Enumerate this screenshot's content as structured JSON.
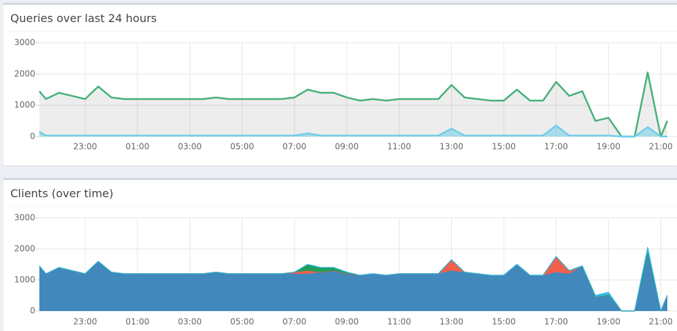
{
  "chart_data": [
    {
      "type": "area",
      "title": "Queries over last 24 hours",
      "stacked": false,
      "grid": true,
      "x": [
        21.25,
        21.5,
        22,
        22.5,
        23,
        23.5,
        24,
        24.5,
        25,
        25.5,
        26,
        26.5,
        27,
        27.5,
        28,
        28.5,
        29,
        29.5,
        30,
        30.5,
        31,
        31.5,
        32,
        32.5,
        33,
        33.5,
        34,
        34.5,
        35,
        35.5,
        36,
        36.5,
        37,
        37.5,
        38,
        38.5,
        39,
        39.5,
        40,
        40.5,
        41,
        41.5,
        42,
        42.5,
        43,
        43.5,
        44,
        44.5,
        45,
        45.25
      ],
      "xlim": [
        21.25,
        45.25
      ],
      "xticks": [
        {
          "value": 23,
          "label": "23:00"
        },
        {
          "value": 25,
          "label": "01:00"
        },
        {
          "value": 27,
          "label": "03:00"
        },
        {
          "value": 29,
          "label": "05:00"
        },
        {
          "value": 31,
          "label": "07:00"
        },
        {
          "value": 33,
          "label": "09:00"
        },
        {
          "value": 35,
          "label": "11:00"
        },
        {
          "value": 37,
          "label": "13:00"
        },
        {
          "value": 39,
          "label": "15:00"
        },
        {
          "value": 41,
          "label": "17:00"
        },
        {
          "value": 43,
          "label": "19:00"
        },
        {
          "value": 45,
          "label": "21:00"
        }
      ],
      "ylim": [
        0,
        3000
      ],
      "yticks": [
        0,
        1000,
        2000,
        3000
      ],
      "series": [
        {
          "color": "#45b07a",
          "fill": "rgba(0,0,0,0.07)",
          "values": [
            1450,
            1200,
            1400,
            1300,
            1200,
            1600,
            1250,
            1200,
            1200,
            1200,
            1200,
            1200,
            1200,
            1200,
            1250,
            1200,
            1200,
            1200,
            1200,
            1200,
            1250,
            1500,
            1400,
            1400,
            1250,
            1150,
            1200,
            1150,
            1200,
            1200,
            1200,
            1200,
            1650,
            1250,
            1200,
            1150,
            1150,
            1500,
            1150,
            1150,
            1750,
            1300,
            1450,
            500,
            600,
            0,
            0,
            2050,
            0,
            500
          ]
        },
        {
          "color": "#6fcde8",
          "fill": "rgba(111,205,232,0.55)",
          "values": [
            150,
            30,
            30,
            30,
            30,
            30,
            30,
            30,
            30,
            30,
            30,
            30,
            30,
            30,
            30,
            30,
            30,
            30,
            30,
            30,
            30,
            100,
            30,
            30,
            30,
            30,
            30,
            30,
            30,
            30,
            30,
            30,
            250,
            30,
            30,
            30,
            30,
            30,
            30,
            30,
            350,
            30,
            30,
            30,
            30,
            0,
            0,
            300,
            0,
            0
          ]
        }
      ]
    },
    {
      "type": "area",
      "title": "Clients (over time)",
      "stacked": true,
      "grid": true,
      "x": [
        21.25,
        21.5,
        22,
        22.5,
        23,
        23.5,
        24,
        24.5,
        25,
        25.5,
        26,
        26.5,
        27,
        27.5,
        28,
        28.5,
        29,
        29.5,
        30,
        30.5,
        31,
        31.5,
        32,
        32.5,
        33,
        33.5,
        34,
        34.5,
        35,
        35.5,
        36,
        36.5,
        37,
        37.5,
        38,
        38.5,
        39,
        39.5,
        40,
        40.5,
        41,
        41.5,
        42,
        42.5,
        43,
        43.5,
        44,
        44.5,
        45,
        45.25
      ],
      "xlim": [
        21.25,
        45.25
      ],
      "xticks": [
        {
          "value": 23,
          "label": "23:00"
        },
        {
          "value": 25,
          "label": "01:00"
        },
        {
          "value": 27,
          "label": "03:00"
        },
        {
          "value": 29,
          "label": "05:00"
        },
        {
          "value": 31,
          "label": "07:00"
        },
        {
          "value": 33,
          "label": "09:00"
        },
        {
          "value": 35,
          "label": "11:00"
        },
        {
          "value": 37,
          "label": "13:00"
        },
        {
          "value": 39,
          "label": "15:00"
        },
        {
          "value": 41,
          "label": "17:00"
        },
        {
          "value": 43,
          "label": "19:00"
        },
        {
          "value": 45,
          "label": "21:00"
        }
      ],
      "ylim": [
        0,
        3000
      ],
      "yticks": [
        0,
        1000,
        2000,
        3000
      ],
      "series": [
        {
          "color": "#4188bd",
          "fill": "#4188bd",
          "values": [
            1450,
            1200,
            1400,
            1300,
            1200,
            1600,
            1250,
            1200,
            1200,
            1200,
            1200,
            1200,
            1200,
            1200,
            1250,
            1200,
            1200,
            1200,
            1200,
            1200,
            1200,
            1200,
            1250,
            1300,
            1200,
            1150,
            1200,
            1150,
            1200,
            1200,
            1200,
            1200,
            1300,
            1250,
            1200,
            1150,
            1150,
            1500,
            1150,
            1150,
            1250,
            1200,
            1450,
            450,
            520,
            0,
            0,
            1900,
            0,
            500
          ]
        },
        {
          "color": "#e8574a",
          "fill": "#f0604d",
          "values": [
            0,
            0,
            0,
            0,
            0,
            0,
            0,
            0,
            0,
            0,
            0,
            0,
            0,
            0,
            0,
            0,
            0,
            0,
            0,
            0,
            50,
            100,
            0,
            0,
            0,
            0,
            0,
            0,
            0,
            0,
            0,
            0,
            350,
            0,
            0,
            0,
            0,
            0,
            0,
            0,
            500,
            100,
            0,
            0,
            0,
            0,
            0,
            0,
            0,
            0
          ]
        },
        {
          "color": "#1a9a55",
          "fill": "#1fa05a",
          "values": [
            0,
            0,
            0,
            0,
            0,
            0,
            0,
            0,
            0,
            0,
            0,
            0,
            0,
            0,
            0,
            0,
            0,
            0,
            0,
            0,
            0,
            200,
            150,
            100,
            50,
            0,
            0,
            0,
            0,
            0,
            0,
            0,
            0,
            0,
            0,
            0,
            0,
            0,
            0,
            0,
            0,
            0,
            0,
            0,
            0,
            0,
            0,
            0,
            0,
            0
          ]
        },
        {
          "color": "#2fb3e0",
          "fill": "#3dbde8",
          "values": [
            0,
            0,
            0,
            0,
            0,
            0,
            0,
            0,
            0,
            0,
            0,
            0,
            0,
            0,
            0,
            0,
            0,
            0,
            0,
            0,
            0,
            0,
            0,
            0,
            0,
            0,
            0,
            0,
            0,
            0,
            0,
            0,
            0,
            0,
            0,
            0,
            0,
            0,
            0,
            0,
            0,
            0,
            0,
            50,
            80,
            0,
            0,
            150,
            0,
            0
          ]
        }
      ]
    }
  ]
}
